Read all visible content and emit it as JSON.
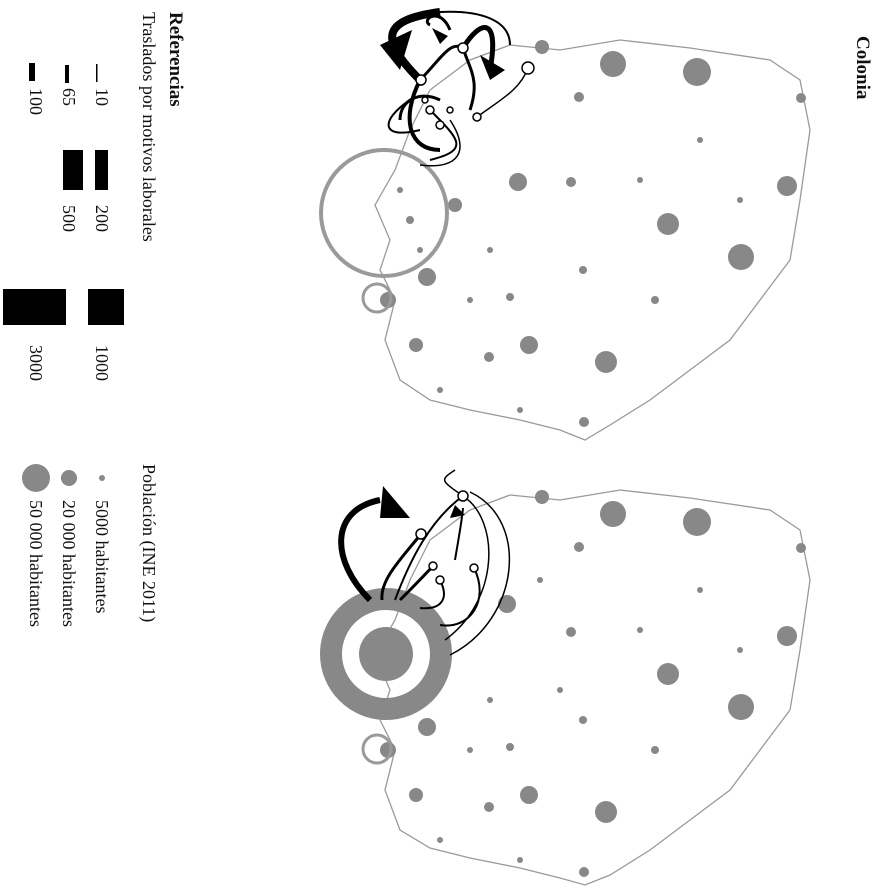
{
  "map_title": "Colonia",
  "legend": {
    "title": "Referencias",
    "subtitle": "Traslados por motivos laborales",
    "flow_labels": [
      "10",
      "65",
      "100",
      "200",
      "500",
      "1000",
      "3000"
    ],
    "population_title": "Población (INE 2011)",
    "population_labels": [
      "5000 habitantes",
      "20 000 habitantes",
      "50 000 habitantes"
    ]
  },
  "colors": {
    "population_fill": "#888888",
    "outline": "#9a9a9a",
    "flow": "#000000",
    "background": "#ffffff"
  }
}
